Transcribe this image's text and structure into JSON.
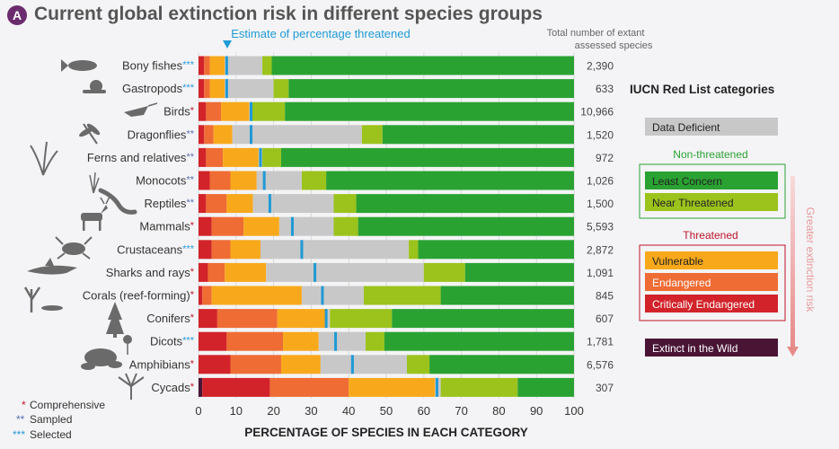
{
  "figure": {
    "badge": "A",
    "title": "Current global extinction risk in different species groups",
    "estimate_label": "Estimate of percentage threatened",
    "total_header": [
      "Total number of extant",
      "assessed species"
    ],
    "legend_title": "IUCN Red List categories",
    "non_threatened_label": "Non-threatened",
    "threatened_label": "Threatened",
    "gradient_label": "Greater extinction risk",
    "footnotes": [
      {
        "mark": "*",
        "text": "Comprehensive",
        "color": "#c0142b"
      },
      {
        "mark": "**",
        "text": "Sampled",
        "color": "#5a6fb5"
      },
      {
        "mark": "***",
        "text": "Selected",
        "color": "#2a9ad6"
      }
    ]
  },
  "colors": {
    "Extinct in the Wild": "#4a1535",
    "Critically Endangered": "#d2232a",
    "Endangered": "#ef6c34",
    "Vulnerable": "#f8a91b",
    "Data Deficient": "#c8c8c8",
    "Near Threatened": "#9bc31c",
    "Least Concern": "#2aa232",
    "estimate_marker": "#1f9ad6",
    "marker_star": "#c0142b",
    "marker_two": "#5a6fb5",
    "marker_three": "#2a9ad6"
  },
  "chart_data": {
    "type": "bar",
    "orientation": "horizontal",
    "stacked": true,
    "xlabel": "PERCENTAGE OF SPECIES IN EACH CATEGORY",
    "xlim": [
      0,
      100
    ],
    "xticks": [
      0,
      10,
      20,
      30,
      40,
      50,
      60,
      70,
      80,
      90,
      100
    ],
    "segment_order": [
      "Extinct in the Wild",
      "Critically Endangered",
      "Endangered",
      "Vulnerable",
      "Data Deficient",
      "Near Threatened",
      "Least Concern"
    ],
    "legend": [
      "Data Deficient",
      "Least Concern",
      "Near Threatened",
      "Vulnerable",
      "Endangered",
      "Critically Endangered",
      "Extinct in the Wild"
    ],
    "rows": [
      {
        "label": "Bony fishes",
        "mark": "***",
        "total": "2,390",
        "estimate": 7.5,
        "values": [
          0,
          1.5,
          1.5,
          4,
          10,
          2.5,
          80.5
        ]
      },
      {
        "label": "Gastropods",
        "mark": "***",
        "total": "633",
        "estimate": 7.5,
        "values": [
          0,
          1.5,
          1.5,
          4,
          13,
          4,
          76
        ]
      },
      {
        "label": "Birds",
        "mark": "*",
        "total": "10,966",
        "estimate": 14,
        "values": [
          0,
          2,
          4,
          7.5,
          0.5,
          9,
          77
        ]
      },
      {
        "label": "Dragonflies",
        "mark": "**",
        "total": "1,520",
        "estimate": 14,
        "values": [
          0,
          1.5,
          2.5,
          5,
          34.5,
          5.5,
          51
        ]
      },
      {
        "label": "Ferns and relatives",
        "mark": "**",
        "total": "972",
        "estimate": 16.5,
        "values": [
          0,
          2,
          4.5,
          9.5,
          1,
          5,
          78
        ]
      },
      {
        "label": "Monocots",
        "mark": "**",
        "total": "1,026",
        "estimate": 17.5,
        "values": [
          0,
          3,
          5.5,
          7,
          12,
          6.5,
          66
        ]
      },
      {
        "label": "Reptiles",
        "mark": "**",
        "total": "1,500",
        "estimate": 19,
        "values": [
          0,
          2,
          5.5,
          7,
          21.5,
          6,
          58
        ]
      },
      {
        "label": "Mammals",
        "mark": "*",
        "total": "5,593",
        "estimate": 25,
        "values": [
          0,
          3.5,
          8.5,
          9.5,
          14.5,
          6.5,
          57.5
        ]
      },
      {
        "label": "Crustaceans",
        "mark": "***",
        "total": "2,872",
        "estimate": 27.5,
        "values": [
          0,
          3.5,
          5,
          8,
          39.5,
          2.5,
          41.5
        ]
      },
      {
        "label": "Sharks and rays",
        "mark": "*",
        "total": "1,091",
        "estimate": 31,
        "values": [
          0,
          2.5,
          4.5,
          11,
          42,
          11,
          29
        ]
      },
      {
        "label": "Corals (reef-forming)",
        "mark": "*",
        "total": "845",
        "estimate": 33,
        "values": [
          0,
          1,
          2.5,
          24,
          16.5,
          20.5,
          35.5
        ]
      },
      {
        "label": "Conifers",
        "mark": "*",
        "total": "607",
        "estimate": 34,
        "values": [
          0,
          5,
          16,
          13,
          1,
          16.5,
          48.5
        ]
      },
      {
        "label": "Dicots",
        "mark": "***",
        "total": "1,781",
        "estimate": 36.5,
        "values": [
          0,
          7.5,
          15,
          9.5,
          12.5,
          5,
          50.5
        ]
      },
      {
        "label": "Amphibians",
        "mark": "*",
        "total": "6,576",
        "estimate": 41,
        "values": [
          0,
          8.5,
          13.5,
          10.5,
          23,
          6,
          38.5
        ]
      },
      {
        "label": "Cycads",
        "mark": "*",
        "total": "307",
        "estimate": 63.5,
        "values": [
          1,
          18,
          21,
          23,
          1.5,
          20.5,
          15
        ]
      }
    ]
  }
}
